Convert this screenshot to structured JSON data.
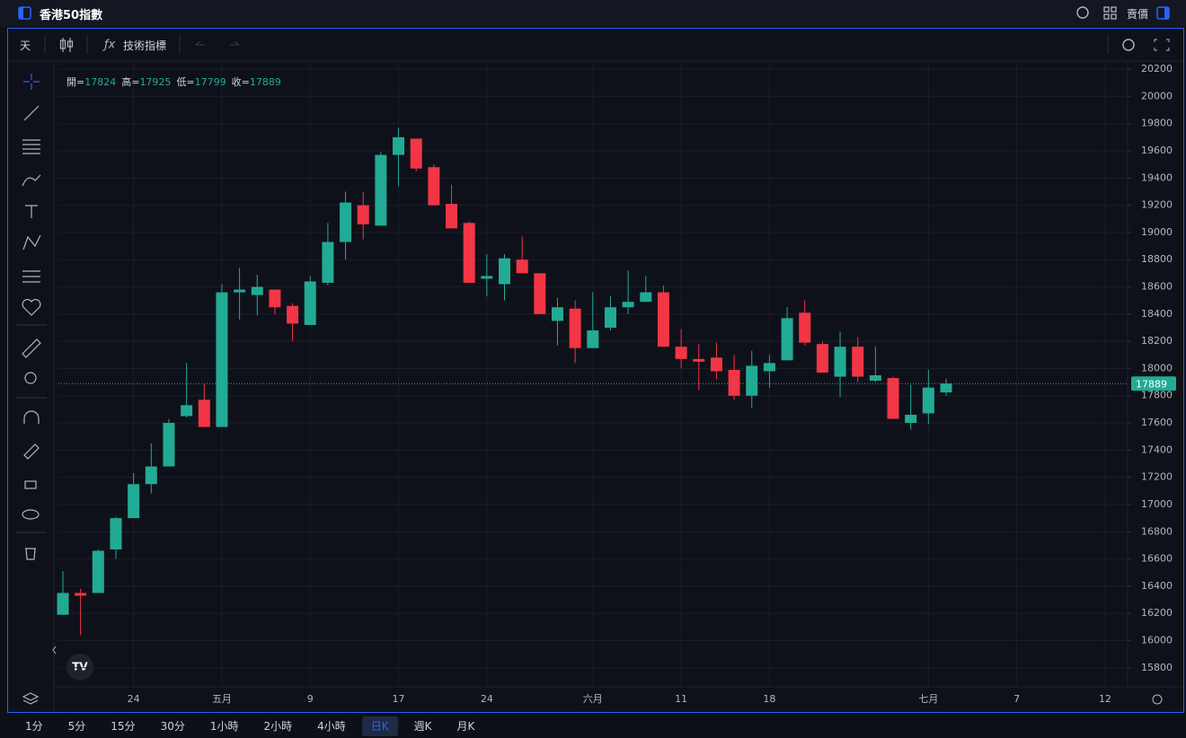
{
  "header": {
    "title": "香港50指數",
    "sell_label": "賣價"
  },
  "toolbar": {
    "interval": "天",
    "indicators": "技術指標"
  },
  "timeframes": [
    "1分",
    "5分",
    "15分",
    "30分",
    "1小時",
    "2小時",
    "4小時",
    "日K",
    "週K",
    "月K"
  ],
  "active_timeframe": "日K",
  "chart_data": {
    "type": "candlestick",
    "legend_labels": {
      "open": "開=",
      "high": "高=",
      "low": "低=",
      "close": "收="
    },
    "categories": [
      null,
      null,
      null,
      null,
      "24",
      null,
      null,
      null,
      null,
      "五月",
      null,
      null,
      null,
      null,
      "9",
      null,
      null,
      null,
      null,
      "17",
      null,
      null,
      null,
      null,
      "24",
      null,
      null,
      null,
      null,
      null,
      "六月",
      null,
      null,
      null,
      null,
      "11",
      null,
      null,
      null,
      null,
      "18",
      null,
      null,
      null,
      null,
      null,
      null,
      null,
      null,
      "七月",
      null,
      null,
      null,
      null,
      "7",
      null,
      null,
      null,
      null,
      "12"
    ],
    "open": [
      16190,
      16350,
      16350,
      16670,
      16900,
      17150,
      17280,
      17650,
      17770,
      17570,
      18560,
      18540,
      18580,
      18460,
      18320,
      18630,
      18930,
      19200,
      19050,
      19570,
      19690,
      19480,
      19210,
      19070,
      18660,
      18620,
      18800,
      18700,
      18350,
      18440,
      18150,
      18300,
      18450,
      18490,
      18560,
      18160,
      18070,
      18080,
      17990,
      17800,
      17980,
      18060,
      18410,
      18180,
      17940,
      18160,
      17910,
      17930,
      17600,
      17670,
      17824,
      null,
      null,
      null,
      null,
      null,
      null,
      null,
      null,
      null
    ],
    "high": [
      16510,
      16380,
      16670,
      16910,
      17230,
      17450,
      17630,
      18040,
      17890,
      18620,
      18740,
      18690,
      18580,
      18480,
      18680,
      19070,
      19300,
      19300,
      19590,
      19770,
      19690,
      19500,
      19350,
      19080,
      18840,
      18840,
      18970,
      18700,
      18520,
      18500,
      18560,
      18530,
      18720,
      18680,
      18610,
      18290,
      18180,
      18190,
      18100,
      18130,
      18100,
      18450,
      18500,
      18200,
      18270,
      18230,
      18160,
      17940,
      17880,
      17990,
      17925,
      null,
      null,
      null,
      null,
      null,
      null,
      null,
      null,
      null
    ],
    "low": [
      16190,
      16040,
      16350,
      16600,
      16900,
      17080,
      17280,
      17640,
      17570,
      17570,
      18360,
      18390,
      18400,
      18200,
      18320,
      18610,
      18800,
      18950,
      19050,
      19340,
      19450,
      19200,
      19030,
      18630,
      18530,
      18500,
      18700,
      18400,
      18170,
      18040,
      18150,
      18280,
      18400,
      18490,
      18160,
      18000,
      17840,
      17920,
      17770,
      17710,
      17860,
      18060,
      18170,
      17970,
      17790,
      17900,
      17900,
      17630,
      17550,
      17590,
      17799,
      null,
      null,
      null,
      null,
      null,
      null,
      null,
      null,
      null
    ],
    "close": [
      16350,
      16330,
      16660,
      16900,
      17150,
      17280,
      17600,
      17730,
      17570,
      18560,
      18580,
      18600,
      18450,
      18330,
      18640,
      18930,
      19220,
      19060,
      19570,
      19700,
      19470,
      19200,
      19030,
      18630,
      18680,
      18810,
      18700,
      18400,
      18450,
      18150,
      18280,
      18450,
      18490,
      18560,
      18160,
      18070,
      18050,
      17980,
      17800,
      18020,
      18040,
      18370,
      18190,
      17970,
      18160,
      17940,
      17950,
      17630,
      17660,
      17860,
      17889,
      null,
      null,
      null,
      null,
      null,
      null,
      null,
      null,
      null
    ],
    "up_color": "#22ab94",
    "down_color": "#f23645",
    "ylim": [
      15660,
      20260
    ],
    "yticks": [
      15800,
      16000,
      16200,
      16400,
      16600,
      16800,
      17000,
      17200,
      17400,
      17600,
      17800,
      18000,
      18200,
      18400,
      18600,
      18800,
      19000,
      19200,
      19400,
      19600,
      19800,
      20000,
      20200
    ],
    "grid": true
  }
}
